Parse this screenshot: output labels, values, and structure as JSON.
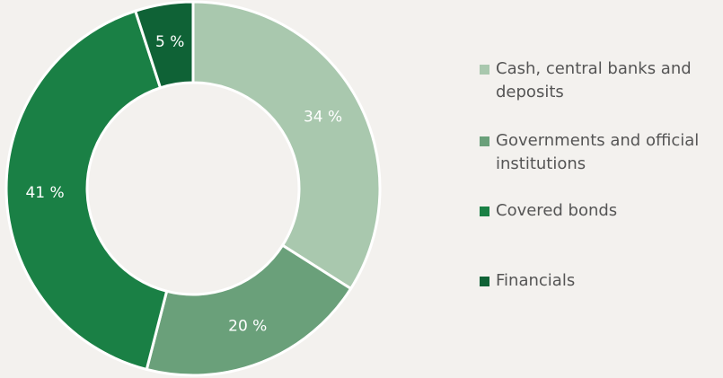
{
  "chart_data": {
    "type": "donut",
    "categories": [
      "Cash, central banks and deposits",
      "Governments and official institutions",
      "Covered bonds",
      "Financials"
    ],
    "values": [
      34,
      20,
      41,
      5
    ],
    "value_labels": [
      "34 %",
      "20 %",
      "41 %",
      "5 %"
    ],
    "colors": [
      "#a9c8ae",
      "#6aa07a",
      "#1a8045",
      "#0f6236"
    ],
    "legend": "right"
  }
}
